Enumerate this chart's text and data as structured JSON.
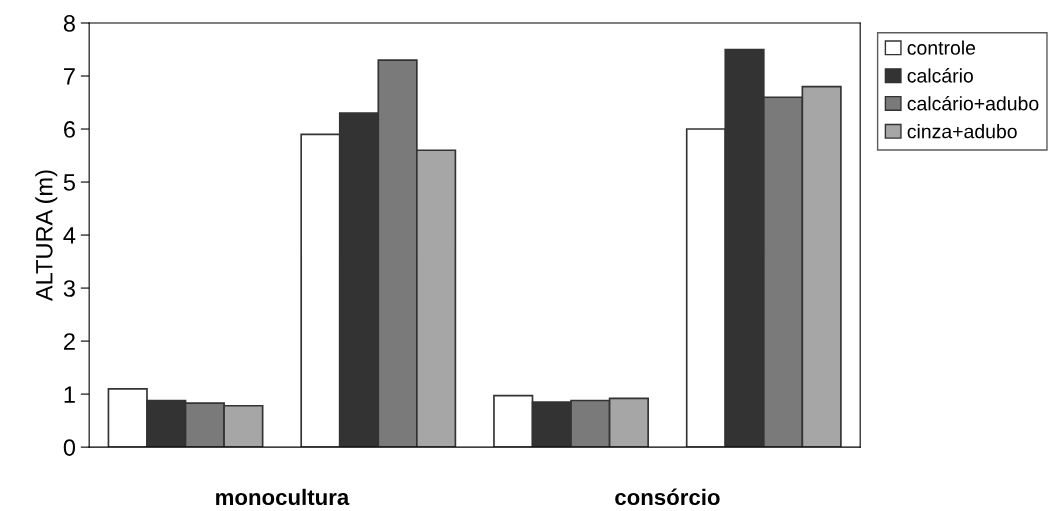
{
  "chart_data": {
    "type": "bar",
    "ylabel": "ALTURA (m)",
    "categories": [
      null,
      null,
      null,
      null
    ],
    "series": [
      {
        "name": "controle",
        "color": "#ffffff",
        "values": [
          1.1,
          5.9,
          0.97,
          6.0
        ]
      },
      {
        "name": "calcário",
        "color": "#333333",
        "values": [
          0.88,
          6.3,
          0.85,
          7.5
        ]
      },
      {
        "name": "calcário+adubo",
        "color": "#7a7a7a",
        "values": [
          0.83,
          7.3,
          0.88,
          6.6
        ]
      },
      {
        "name": "cinza+adubo",
        "color": "#a6a6a6",
        "values": [
          0.78,
          5.6,
          0.92,
          6.8
        ]
      }
    ],
    "annotations": [
      "monocultura",
      "consórcio"
    ],
    "ylim": [
      0,
      8
    ],
    "yticks": [
      0,
      1,
      2,
      3,
      4,
      5,
      6,
      7,
      8
    ],
    "grid": false,
    "legend": "top right"
  }
}
